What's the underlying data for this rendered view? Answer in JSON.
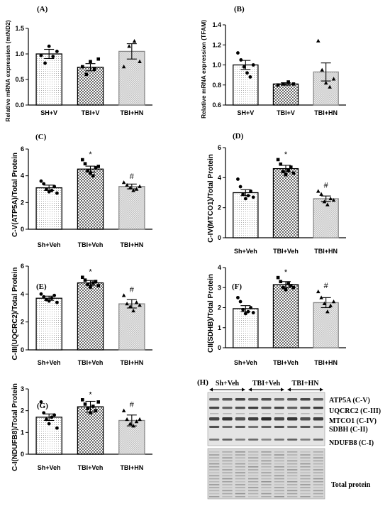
{
  "chart_data": [
    {
      "panel": "(A)",
      "type": "bar",
      "ylabel": "Relative mRNA expression (mtND2)",
      "categories": [
        "SH+V",
        "TBI+V",
        "TBI+HN"
      ],
      "ylim": [
        0,
        1.5
      ],
      "yticks": [
        "0.0",
        "0.5",
        "1.0",
        "1.5"
      ],
      "values": [
        1.0,
        0.74,
        1.05
      ],
      "errors": [
        0.09,
        0.07,
        0.15
      ],
      "points": [
        [
          0.97,
          0.82,
          1.15,
          0.95,
          1.05
        ],
        [
          0.75,
          0.6,
          0.85,
          0.7,
          0.9
        ],
        [
          0.75,
          1.15,
          1.25,
          0.85
        ]
      ],
      "signif": [
        "",
        "",
        ""
      ]
    },
    {
      "panel": "(B)",
      "type": "bar",
      "ylabel": "Relative mRNA expression (TFAM)",
      "categories": [
        "SH+V",
        "TBI+V",
        "TBI+HN"
      ],
      "ylim": [
        0.6,
        1.4
      ],
      "yticks": [
        "0.6",
        "0.8",
        "1.0",
        "1.2",
        "1.4"
      ],
      "values": [
        1.0,
        0.81,
        0.93
      ],
      "errors": [
        0.045,
        0.012,
        0.09
      ],
      "points": [
        [
          1.12,
          1.05,
          0.98,
          0.92,
          0.88,
          1.0
        ],
        [
          0.8,
          0.81,
          0.83,
          0.81
        ],
        [
          1.24,
          0.95,
          0.82,
          0.78,
          0.86
        ]
      ],
      "signif": [
        "",
        "",
        ""
      ]
    },
    {
      "panel": "(C)",
      "type": "bar",
      "ylabel": "C-V(ATP5A)/Total Protein",
      "categories": [
        "Sh+Veh",
        "TBI+Veh",
        "TBI+HN"
      ],
      "ylim": [
        0,
        6
      ],
      "yticks": [
        "0",
        "2",
        "4",
        "6"
      ],
      "values": [
        3.1,
        4.5,
        3.2
      ],
      "errors": [
        0.2,
        0.22,
        0.18
      ],
      "points": [
        [
          3.6,
          3.4,
          3.0,
          2.8,
          2.9,
          3.2,
          2.7
        ],
        [
          5.2,
          4.9,
          4.4,
          4.2,
          4.0,
          4.6,
          4.7
        ],
        [
          3.5,
          3.3,
          3.1,
          2.9,
          3.0,
          3.2
        ]
      ],
      "signif": [
        "",
        "*",
        "#"
      ]
    },
    {
      "panel": "(D)",
      "type": "bar",
      "ylabel": "C-IV(MTCO1)/Total Protein",
      "categories": [
        "Sh+Veh",
        "TBI+Veh",
        "TBI+HN"
      ],
      "ylim": [
        0,
        6
      ],
      "yticks": [
        "0",
        "2",
        "4",
        "6"
      ],
      "values": [
        3.0,
        4.6,
        2.6
      ],
      "errors": [
        0.2,
        0.22,
        0.18
      ],
      "points": [
        [
          3.9,
          3.4,
          2.9,
          2.6,
          2.8,
          3.1,
          2.7
        ],
        [
          5.2,
          4.9,
          4.4,
          4.2,
          4.5,
          4.7,
          4.3
        ],
        [
          3.1,
          2.9,
          2.4,
          2.2,
          2.6,
          2.5
        ]
      ],
      "signif": [
        "",
        "*",
        "#"
      ]
    },
    {
      "panel": "(E)",
      "type": "bar",
      "ylabel": "C-III(UQCRC2)/Total Protein",
      "categories": [
        "Sh+Veh",
        "TBI+Veh",
        "TBI+HN"
      ],
      "ylim": [
        0,
        6
      ],
      "yticks": [
        "0",
        "2",
        "4",
        "6"
      ],
      "values": [
        3.7,
        4.8,
        3.3
      ],
      "errors": [
        0.15,
        0.17,
        0.3
      ],
      "points": [
        [
          4.0,
          3.8,
          3.6,
          3.5,
          3.7,
          3.9,
          3.4
        ],
        [
          5.2,
          5.0,
          4.7,
          4.5,
          4.8,
          4.9,
          4.6
        ],
        [
          3.9,
          3.3,
          3.1,
          2.8,
          3.4,
          3.2
        ]
      ],
      "signif": [
        "",
        "*",
        "#"
      ]
    },
    {
      "panel": "(F)",
      "type": "bar",
      "ylabel": "CII(SDHB)/Total Protein",
      "categories": [
        "Sh+Veh",
        "TBI+Veh",
        "TBI+HN"
      ],
      "ylim": [
        0,
        4
      ],
      "yticks": [
        "0",
        "1",
        "2",
        "3",
        "4"
      ],
      "values": [
        1.95,
        3.15,
        2.25
      ],
      "errors": [
        0.15,
        0.15,
        0.25
      ],
      "points": [
        [
          2.5,
          2.3,
          1.9,
          1.7,
          1.8,
          2.0,
          1.75
        ],
        [
          3.5,
          3.3,
          3.0,
          2.9,
          3.2,
          3.1,
          3.0
        ],
        [
          2.8,
          2.5,
          2.2,
          1.8,
          2.1,
          2.3
        ]
      ],
      "signif": [
        "",
        "*",
        "#"
      ]
    },
    {
      "panel": "(G)",
      "type": "bar",
      "ylabel": "C-I(NDUFB8)/Total Protein",
      "categories": [
        "Sh+Veh",
        "TBI+Veh",
        "TBI+HN"
      ],
      "ylim": [
        0,
        3
      ],
      "yticks": [
        "0",
        "1",
        "2",
        "3"
      ],
      "values": [
        1.7,
        2.18,
        1.55
      ],
      "errors": [
        0.15,
        0.25,
        0.25
      ],
      "points": [
        [
          2.4,
          1.9,
          1.6,
          1.4,
          1.7,
          1.8,
          1.2
        ],
        [
          2.5,
          2.3,
          2.1,
          1.9,
          2.2,
          2.0,
          2.4
        ],
        [
          2.0,
          1.6,
          1.4,
          1.3,
          1.5,
          1.6
        ]
      ],
      "signif": [
        "",
        "*",
        "#"
      ]
    }
  ],
  "blot": {
    "panel": "(H)",
    "groups": [
      "Sh+Veh",
      "TBI+Veh",
      "TBI+HN"
    ],
    "bands": [
      "ATP5A (C-V)",
      "UQCRC2 (C-III)",
      "MTCO1 (C-IV)",
      "SDBH (C-II)",
      "NDUFB8 (C-I)"
    ],
    "total_label": "Total protein"
  },
  "colors": {
    "axis": "#000000",
    "bar_fill": "#ffffff",
    "pattern_sh": "#9a9a9a",
    "pattern_tbi": "#6a6a6a",
    "pattern_hn": "#c2c2c2",
    "hn_bar_edge": "#8a8a8a",
    "blot_bg": "#dcdcdc",
    "band": "#2a2a2a"
  }
}
